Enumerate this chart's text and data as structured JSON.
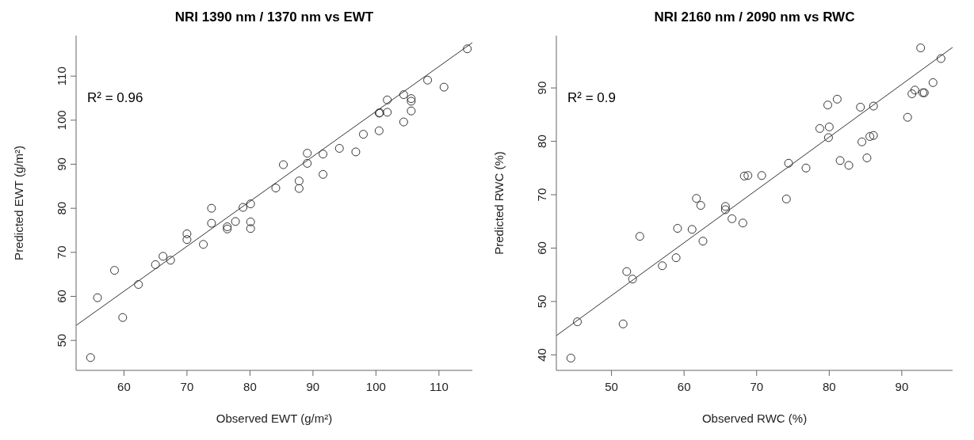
{
  "chart_data": [
    {
      "type": "scatter",
      "title": "NRI 1390 nm / 1370 nm vs EWT",
      "xlabel": "Observed EWT (g/m²)",
      "ylabel": "Predicted EWT (g/m²)",
      "xlim": [
        52.4,
        115.3
      ],
      "ylim": [
        43.2,
        119.2
      ],
      "xticks": [
        60,
        70,
        80,
        90,
        100,
        110
      ],
      "yticks": [
        50,
        60,
        70,
        80,
        90,
        100,
        110
      ],
      "annotations": [
        "R² = 0.96"
      ],
      "series": [
        {
          "marker": "circle",
          "color": "#333333",
          "x": [
            54.7,
            55.8,
            58.5,
            59.8,
            62.3,
            65,
            66.2,
            67.4,
            70,
            70,
            72.6,
            73.9,
            73.9,
            76.4,
            76.4,
            77.7,
            78.9,
            80.1,
            80.1,
            80.1,
            84.1,
            85.3,
            87.8,
            87.8,
            89.1,
            89.1,
            91.6,
            91.6,
            94.2,
            96.8,
            98,
            100.5,
            100.5,
            100.6,
            101.8,
            101.8,
            104.4,
            104.4,
            105.6,
            105.6,
            105.6,
            108.2,
            110.8,
            114.5
          ],
          "values": [
            46.1,
            59.7,
            65.9,
            55.2,
            62.7,
            67.2,
            69.1,
            68.2,
            74.2,
            72.9,
            71.8,
            80,
            76.6,
            75.8,
            75.3,
            77,
            80.2,
            81,
            76.9,
            75.4,
            84.6,
            89.9,
            86.2,
            84.5,
            92.5,
            90.2,
            92.3,
            87.7,
            93.6,
            92.8,
            96.8,
            97.6,
            101.6,
            101.7,
            104.6,
            101.8,
            105.8,
            99.6,
            104.9,
            104.3,
            102.1,
            109.1,
            107.5,
            116.2
          ]
        },
        {
          "type": "line",
          "color": "#333333",
          "x": [
            52.4,
            115.3
          ],
          "values": [
            53.4,
            117.6
          ]
        }
      ]
    },
    {
      "type": "scatter",
      "title": "NRI 2160 nm / 2090 nm vs RWC",
      "xlabel": "Observed RWC (%)",
      "ylabel": "Predicted RWC (%)",
      "xlim": [
        42.4,
        97
      ],
      "ylim": [
        37.1,
        99.8
      ],
      "xticks": [
        50,
        60,
        70,
        80,
        90
      ],
      "yticks": [
        40,
        50,
        60,
        70,
        80,
        90
      ],
      "annotations": [
        "R² = 0.9"
      ],
      "series": [
        {
          "marker": "circle",
          "color": "#333333",
          "x": [
            44.4,
            45.3,
            51.6,
            52.1,
            52.9,
            53.9,
            57,
            58.9,
            59.1,
            61.1,
            61.7,
            62.3,
            62.6,
            65.7,
            65.7,
            66.6,
            68.1,
            68.3,
            68.8,
            70.7,
            74.1,
            74.4,
            76.8,
            78.7,
            79.8,
            79.9,
            80,
            81.1,
            81.5,
            82.7,
            84.3,
            84.5,
            85.2,
            85.6,
            86.1,
            86.1,
            90.8,
            91.4,
            91.8,
            92.6,
            92.9,
            93.1,
            94.3,
            95.4
          ],
          "values": [
            39.4,
            46.2,
            45.8,
            55.6,
            54.2,
            62.2,
            56.7,
            58.2,
            63.7,
            63.5,
            69.3,
            68,
            61.3,
            67.8,
            67.2,
            65.5,
            64.7,
            73.5,
            73.6,
            73.6,
            69.2,
            75.9,
            75,
            82.4,
            86.8,
            80.7,
            82.7,
            87.9,
            76.4,
            75.5,
            86.4,
            79.9,
            76.9,
            80.9,
            81.1,
            86.6,
            84.5,
            88.9,
            89.6,
            97.5,
            89.1,
            89.1,
            91,
            95.5
          ]
        },
        {
          "type": "line",
          "color": "#333333",
          "x": [
            42.4,
            97
          ],
          "values": [
            43.6,
            97.6
          ]
        }
      ]
    }
  ]
}
